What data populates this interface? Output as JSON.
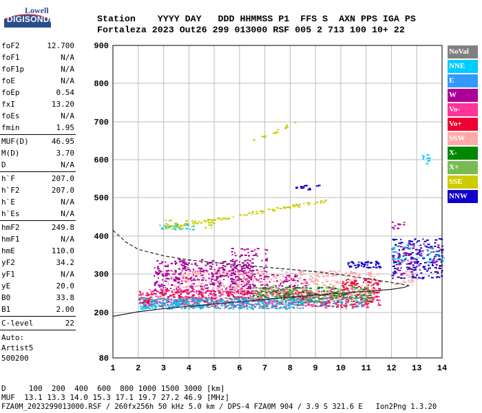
{
  "logo": {
    "top": "Lowell",
    "bottom": "DIGISONDE"
  },
  "header": {
    "line1": "Station    YYYY DAY   DDD HHMMSS P1  FFS S  AXN PPS IGA PS",
    "line2": "Fortaleza 2023 Out26 299 013000 RSF 005 2 713 100 10+ 22"
  },
  "params": [
    [
      [
        "foF2",
        "12.700"
      ],
      [
        "foF1",
        "N/A"
      ],
      [
        "foF1p",
        "N/A"
      ],
      [
        "foE",
        "N/A"
      ],
      [
        "foEp",
        "0.54"
      ],
      [
        "fxI",
        "13.20"
      ],
      [
        "foEs",
        "N/A"
      ],
      [
        "fmin",
        "1.95"
      ]
    ],
    [
      [
        "MUF(D)",
        "46.95"
      ],
      [
        "M(D)",
        "3.70"
      ],
      [
        "D",
        "N/A"
      ]
    ],
    [
      [
        "h`F",
        "207.0"
      ],
      [
        "h`F2",
        "207.0"
      ],
      [
        "h`E",
        "N/A"
      ],
      [
        "h`Es",
        "N/A"
      ]
    ],
    [
      [
        "hmF2",
        "249.8"
      ],
      [
        "hmF1",
        "N/A"
      ],
      [
        "hmE",
        "110.0"
      ],
      [
        "yF2",
        "34.2"
      ],
      [
        "yF1",
        "N/A"
      ],
      [
        "yE",
        "20.0"
      ],
      [
        "B0",
        "33.8"
      ],
      [
        "B1",
        "2.00"
      ]
    ],
    [
      [
        "C-level",
        "22"
      ]
    ]
  ],
  "auto": {
    "line1": "Auto:",
    "line2": "Artist5",
    "line3": "500200"
  },
  "footer": {
    "d_row": "D     100  200  400  600  800 1000 1500 3000 [km]",
    "muf_row": "MUF  13.1 13.3 14.0 15.3 17.1 19.7 27.2 46.9 [MHz]",
    "file_row": "FZA0M_2023299013000.RSF / 260fx256h 50 kHz 5.0 km / DPS-4 FZA0M 904 / 3.9 S 321.6 E   Ion2Png 1.3.20"
  },
  "legend": [
    {
      "label": "NoVal",
      "color": "#808080"
    },
    {
      "label": "NNE",
      "color": "#00ccff"
    },
    {
      "label": "E",
      "color": "#3399ff"
    },
    {
      "label": "W",
      "color": "#aa0099"
    },
    {
      "label": "Vo-",
      "color": "#ff3399"
    },
    {
      "label": "Vo+",
      "color": "#ee0033"
    },
    {
      "label": "SSW",
      "color": "#ffaaaa"
    },
    {
      "label": "X-",
      "color": "#008800"
    },
    {
      "label": "X+",
      "color": "#77bb55"
    },
    {
      "label": "SSE",
      "color": "#cccc00"
    },
    {
      "label": "NNW",
      "color": "#1100cc"
    }
  ],
  "chart_data": {
    "type": "scatter",
    "x_ticks": [
      1,
      2,
      3,
      4,
      5,
      6,
      7,
      8,
      9,
      10,
      11,
      12,
      13,
      14
    ],
    "y_ticks": [
      80,
      200,
      300,
      400,
      500,
      600,
      700,
      800,
      900
    ],
    "xlim": [
      1,
      14
    ],
    "ylim": [
      80,
      900
    ],
    "grid": true,
    "curves": [
      {
        "style": "solid",
        "points": [
          [
            1,
            190
          ],
          [
            2,
            202
          ],
          [
            3,
            210
          ],
          [
            4,
            216
          ],
          [
            5,
            222
          ],
          [
            6,
            228
          ],
          [
            7,
            234
          ],
          [
            8,
            240
          ],
          [
            9,
            245
          ],
          [
            10,
            250
          ],
          [
            11,
            255
          ],
          [
            12,
            260
          ],
          [
            12.5,
            265
          ],
          [
            12.7,
            270
          ]
        ]
      },
      {
        "style": "dashed",
        "points": [
          [
            1,
            415
          ],
          [
            1.5,
            385
          ],
          [
            2,
            365
          ],
          [
            3,
            348
          ],
          [
            4,
            337
          ],
          [
            5,
            330
          ],
          [
            6,
            324
          ],
          [
            7,
            318
          ],
          [
            8,
            312
          ],
          [
            9,
            306
          ],
          [
            10,
            298
          ],
          [
            11,
            288
          ],
          [
            12,
            278
          ],
          [
            12.5,
            272
          ],
          [
            12.7,
            270
          ]
        ]
      }
    ],
    "clusters": [
      {
        "series": "W",
        "xr": [
          2.6,
          6.5
        ],
        "yr": [
          250,
          340
        ],
        "n": 420
      },
      {
        "series": "W",
        "xr": [
          6.0,
          8.6
        ],
        "yr": [
          250,
          300
        ],
        "n": 120
      },
      {
        "series": "W",
        "xr": [
          5.6,
          7.1
        ],
        "yr": [
          300,
          370
        ],
        "n": 60
      },
      {
        "series": "SSW",
        "xr": [
          3.0,
          11.5
        ],
        "yr": [
          250,
          310
        ],
        "n": 380
      },
      {
        "series": "SSW",
        "xr": [
          12.0,
          13.0
        ],
        "yr": [
          270,
          310
        ],
        "n": 30
      },
      {
        "series": "Vo-",
        "xr": [
          2.0,
          11.5
        ],
        "yr": [
          218,
          262
        ],
        "n": 420
      },
      {
        "series": "Vo+",
        "xr": [
          2.0,
          11.5
        ],
        "yr": [
          215,
          258
        ],
        "n": 300
      },
      {
        "series": "Vo+",
        "xr": [
          10.0,
          11.5
        ],
        "yr": [
          260,
          290
        ],
        "n": 60
      },
      {
        "series": "X-",
        "xr": [
          6.5,
          11.2
        ],
        "yr": [
          228,
          268
        ],
        "n": 160
      },
      {
        "series": "X+",
        "xr": [
          6.5,
          11.2
        ],
        "yr": [
          228,
          268
        ],
        "n": 120
      },
      {
        "series": "NNE",
        "xr": [
          2.0,
          8.5
        ],
        "yr": [
          210,
          238
        ],
        "n": 230
      },
      {
        "series": "E",
        "xr": [
          2.0,
          11.0
        ],
        "yr": [
          212,
          240
        ],
        "n": 200
      },
      {
        "series": "NoVal",
        "xr": [
          2.0,
          10.5
        ],
        "yr": [
          212,
          245
        ],
        "n": 120
      },
      {
        "series": "NNW",
        "xr": [
          10.2,
          11.5
        ],
        "yr": [
          318,
          335
        ],
        "n": 50
      },
      {
        "series": "NNW",
        "xr": [
          12.0,
          14.0
        ],
        "yr": [
          290,
          395
        ],
        "n": 180
      },
      {
        "series": "W",
        "xr": [
          12.0,
          14.0
        ],
        "yr": [
          300,
          380
        ],
        "n": 70
      },
      {
        "series": "NNE",
        "xr": [
          12.0,
          14.0
        ],
        "yr": [
          330,
          380
        ],
        "n": 40
      },
      {
        "series": "SSE",
        "xr": [
          3.0,
          9.5
        ],
        "yr": [
          422,
          495
        ],
        "n": 90,
        "trend": true
      },
      {
        "series": "NNE",
        "xr": [
          2.8,
          4.2
        ],
        "yr": [
          418,
          435
        ],
        "n": 25
      },
      {
        "series": "SSE",
        "xr": [
          6.5,
          8.2
        ],
        "yr": [
          650,
          700
        ],
        "n": 14,
        "trend": true
      },
      {
        "series": "NNW",
        "xr": [
          8.0,
          9.2
        ],
        "yr": [
          522,
          535
        ],
        "n": 16
      },
      {
        "series": "NNE",
        "xr": [
          13.2,
          13.5
        ],
        "yr": [
          590,
          615
        ],
        "n": 10
      },
      {
        "series": "SSE",
        "xr": [
          3.0,
          5.0
        ],
        "yr": [
          420,
          445
        ],
        "n": 30
      },
      {
        "series": "W",
        "xr": [
          12.0,
          12.5
        ],
        "yr": [
          420,
          440
        ],
        "n": 10
      }
    ]
  }
}
